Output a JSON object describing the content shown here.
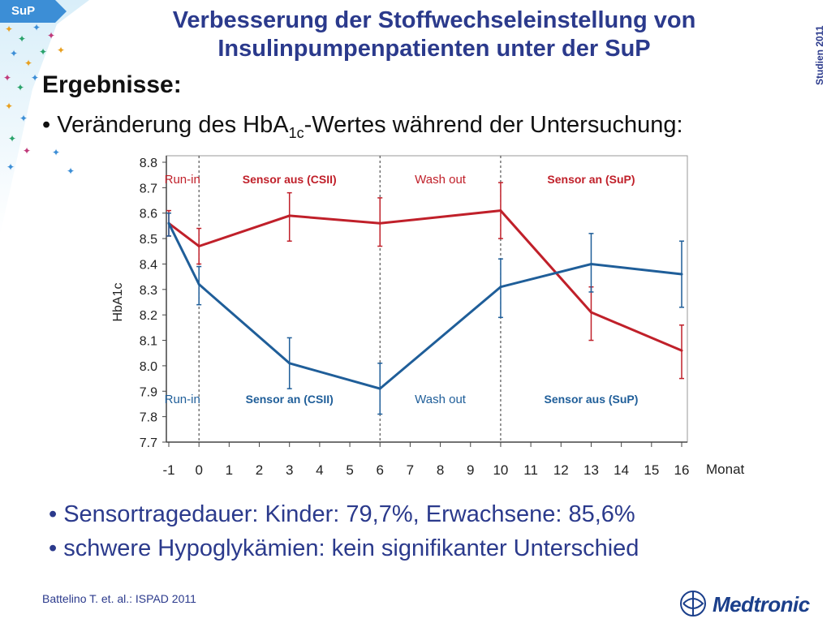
{
  "tab_label": "SuP",
  "title_line1": "Verbesserung der Stoffwechseleinstellung von",
  "title_line2": "Insulinpumpenpatienten unter der SuP",
  "side_label": "Studien 2011",
  "heading": "Ergebnisse:",
  "bullet1_a": "• Veränderung des HbA",
  "bullet1_sub": "1c",
  "bullet1_b": "-Wertes während der Untersuchung:",
  "bullet2": "• Sensortragedauer: Kinder: 79,7%, Erwachsene: 85,6%",
  "bullet3": "• schwere Hypoglykämien: kein signifikanter Unterschied",
  "citation": "Battelino T. et. al.: ISPAD  2011",
  "logo_text": "Medtronic",
  "colors": {
    "accent": "#2b3a8c",
    "red_series": "#c0202a",
    "blue_series": "#1f5e99",
    "tab_blue": "#3c8ed6"
  },
  "chart_data": {
    "type": "line",
    "xlabel": "Monat",
    "ylabel": "HbA1c",
    "xlim": [
      -1,
      16
    ],
    "ylim": [
      7.7,
      8.8
    ],
    "x_ticks": [
      "-1",
      "0",
      "1",
      "2",
      "3",
      "4",
      "5",
      "6",
      "7",
      "8",
      "9",
      "10",
      "11",
      "12",
      "13",
      "14",
      "15",
      "16"
    ],
    "y_ticks": [
      "7.7",
      "7.8",
      "7.9",
      "8.0",
      "8.1",
      "8.2",
      "8.3",
      "8.4",
      "8.5",
      "8.6",
      "8.7",
      "8.8"
    ],
    "dividers_x": [
      0,
      6,
      10
    ],
    "top_phase_labels": [
      {
        "text": "Run-in",
        "x": -0.55,
        "color": "#c0202a",
        "bold": false
      },
      {
        "text": "Sensor aus (CSII)",
        "x": 3.0,
        "color": "#c0202a",
        "bold": true
      },
      {
        "text": "Wash out",
        "x": 8.0,
        "color": "#c0202a",
        "bold": false
      },
      {
        "text": "Sensor an (SuP)",
        "x": 13.0,
        "color": "#c0202a",
        "bold": true
      }
    ],
    "bottom_phase_labels": [
      {
        "text": "Run-in",
        "x": -0.55,
        "color": "#1f5e99",
        "bold": false
      },
      {
        "text": "Sensor an (CSII)",
        "x": 3.0,
        "color": "#1f5e99",
        "bold": true
      },
      {
        "text": "Wash out",
        "x": 8.0,
        "color": "#1f5e99",
        "bold": false
      },
      {
        "text": "Sensor aus (SuP)",
        "x": 13.0,
        "color": "#1f5e99",
        "bold": true
      }
    ],
    "series": [
      {
        "color": "#c0202a",
        "points": [
          {
            "x": -1,
            "y": 8.56,
            "lo": 8.51,
            "hi": 8.61
          },
          {
            "x": 0,
            "y": 8.47,
            "lo": 8.4,
            "hi": 8.54
          },
          {
            "x": 3,
            "y": 8.59,
            "lo": 8.49,
            "hi": 8.68
          },
          {
            "x": 6,
            "y": 8.56,
            "lo": 8.47,
            "hi": 8.66
          },
          {
            "x": 10,
            "y": 8.61,
            "lo": 8.5,
            "hi": 8.72
          },
          {
            "x": 13,
            "y": 8.21,
            "lo": 8.1,
            "hi": 8.31
          },
          {
            "x": 16,
            "y": 8.06,
            "lo": 7.95,
            "hi": 8.16
          }
        ]
      },
      {
        "color": "#1f5e99",
        "points": [
          {
            "x": -1,
            "y": 8.56,
            "lo": 8.51,
            "hi": 8.6
          },
          {
            "x": 0,
            "y": 8.32,
            "lo": 8.24,
            "hi": 8.39
          },
          {
            "x": 3,
            "y": 8.01,
            "lo": 7.91,
            "hi": 8.11
          },
          {
            "x": 6,
            "y": 7.91,
            "lo": 7.81,
            "hi": 8.01
          },
          {
            "x": 10,
            "y": 8.31,
            "lo": 8.19,
            "hi": 8.42
          },
          {
            "x": 13,
            "y": 8.4,
            "lo": 8.29,
            "hi": 8.52
          },
          {
            "x": 16,
            "y": 8.36,
            "lo": 8.23,
            "hi": 8.49
          }
        ]
      }
    ]
  }
}
